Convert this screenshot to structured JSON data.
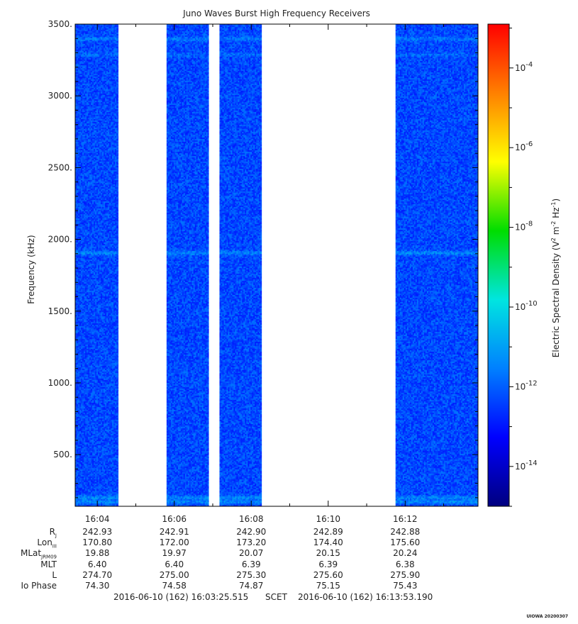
{
  "chart_data": {
    "type": "heatmap",
    "title": "Juno Waves Burst High Frequency Receivers",
    "ylabel": "Frequency (kHz)",
    "ylim": [
      140,
      3500
    ],
    "y_ticks": [
      "500.",
      "1000.",
      "1500.",
      "2000.",
      "2500.",
      "3000.",
      "3500."
    ],
    "y_tick_values": [
      500,
      1000,
      1500,
      2000,
      2500,
      3000,
      3500
    ],
    "x_ticks": [
      "16:04",
      "16:06",
      "16:08",
      "16:10",
      "16:12"
    ],
    "x_tick_minutes": [
      4,
      6,
      8,
      10,
      12
    ],
    "xlim_minutes": [
      3.425,
      13.893
    ],
    "data_segments_minutes": [
      [
        3.425,
        4.55
      ],
      [
        5.8,
        6.9
      ],
      [
        7.175,
        8.275
      ],
      [
        11.75,
        13.893
      ]
    ],
    "emission_bands_khz": [
      {
        "center": 3400,
        "strength": "moderate"
      },
      {
        "center": 3290,
        "strength": "weak"
      },
      {
        "center": 1910,
        "strength": "strong"
      },
      {
        "center": 205,
        "strength": "strong"
      },
      {
        "center": 175,
        "strength": "strong"
      }
    ],
    "background_level_log10": -12.3,
    "colorbar": {
      "label": "Electric Spectral Density (V² m⁻² Hz⁻¹)",
      "label_main": "Electric Spectral Density (V",
      "label_sup1": "2",
      "label_mid1": " m",
      "label_sup2": "-2",
      "label_mid2": " Hz",
      "label_sup3": "-1",
      "label_end": ")",
      "log_range": [
        -15,
        -2.9
      ],
      "tick_exponents": [
        -4,
        -6,
        -8,
        -10,
        -12,
        -14
      ],
      "tick_base": "10",
      "tick_exp_labels": [
        "-4",
        "-6",
        "-8",
        "-10",
        "-12",
        "-14"
      ],
      "colormap": [
        "#00007f",
        "#0000ff",
        "#0080ff",
        "#00e5e0",
        "#00dd00",
        "#ffff00",
        "#ff8000",
        "#ff0000"
      ]
    }
  },
  "ephemeris": {
    "rows": [
      {
        "label": "R",
        "sub": "J",
        "values": [
          "242.93",
          "242.91",
          "242.90",
          "242.89",
          "242.88"
        ]
      },
      {
        "label": "Lon",
        "sub": "III",
        "values": [
          "170.80",
          "172.00",
          "173.20",
          "174.40",
          "175.60"
        ]
      },
      {
        "label": "MLat",
        "sub": "JRM09",
        "values": [
          "19.88",
          "19.97",
          "20.07",
          "20.15",
          "20.24"
        ]
      },
      {
        "label": "MLT",
        "sub": "",
        "values": [
          "6.40",
          "6.40",
          "6.39",
          "6.39",
          "6.38"
        ]
      },
      {
        "label": "L",
        "sub": "",
        "values": [
          "274.70",
          "275.00",
          "275.30",
          "275.60",
          "275.90"
        ]
      },
      {
        "label": "Io Phase",
        "sub": "",
        "values": [
          "74.30",
          "74.58",
          "74.87",
          "75.15",
          "75.43"
        ]
      }
    ]
  },
  "footer": {
    "start": "2016-06-10 (162) 16:03:25.515",
    "scet": "SCET",
    "end": "2016-06-10 (162) 16:13:53.190"
  },
  "stamp": "UIOWA 20200307"
}
